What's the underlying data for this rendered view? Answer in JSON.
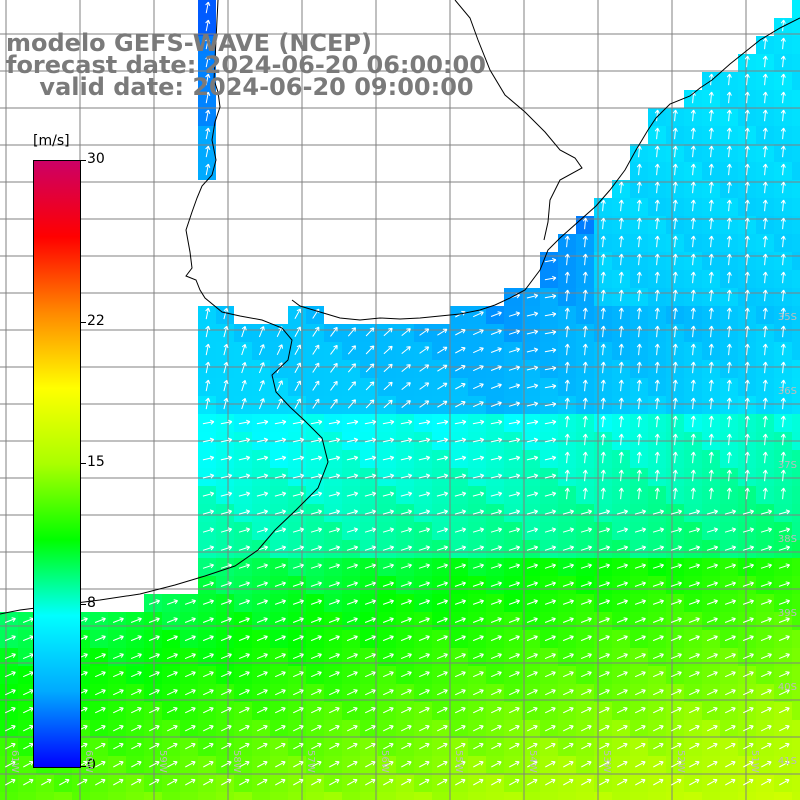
{
  "titles": {
    "line1": "modelo GEFS-WAVE (NCEP)",
    "line2": "forecast date: 2024-06-20 06:00:00",
    "line3": "    valid date: 2024-06-20 09:00:00"
  },
  "colorbar": {
    "units": "[m/s]",
    "min": 0,
    "max": 30,
    "ticks": [
      {
        "value": 30,
        "label": "30"
      },
      {
        "value": 22,
        "label": "22"
      },
      {
        "value": 15,
        "label": "15"
      },
      {
        "value": 8,
        "label": "8"
      },
      {
        "value": 0,
        "label": "0"
      }
    ],
    "stops": [
      "#0000ff",
      "#00aaff",
      "#00ffff",
      "#00ff00",
      "#aaff00",
      "#ffff00",
      "#ff8800",
      "#ff0000",
      "#cc0066"
    ]
  },
  "graticule": {
    "lat_labels": [
      "35S",
      "36S",
      "37S",
      "38S",
      "39S",
      "40S",
      "41S"
    ],
    "lon_labels": [
      "61W",
      "60W",
      "59W",
      "58W",
      "57W",
      "56W",
      "55W",
      "54W",
      "53W",
      "52W",
      "51W"
    ]
  },
  "colors": {
    "land": "#ffffff",
    "coast": "#000000",
    "grid": "#808080",
    "arrow": "#ffffff",
    "title": "#7a7a7a"
  }
}
